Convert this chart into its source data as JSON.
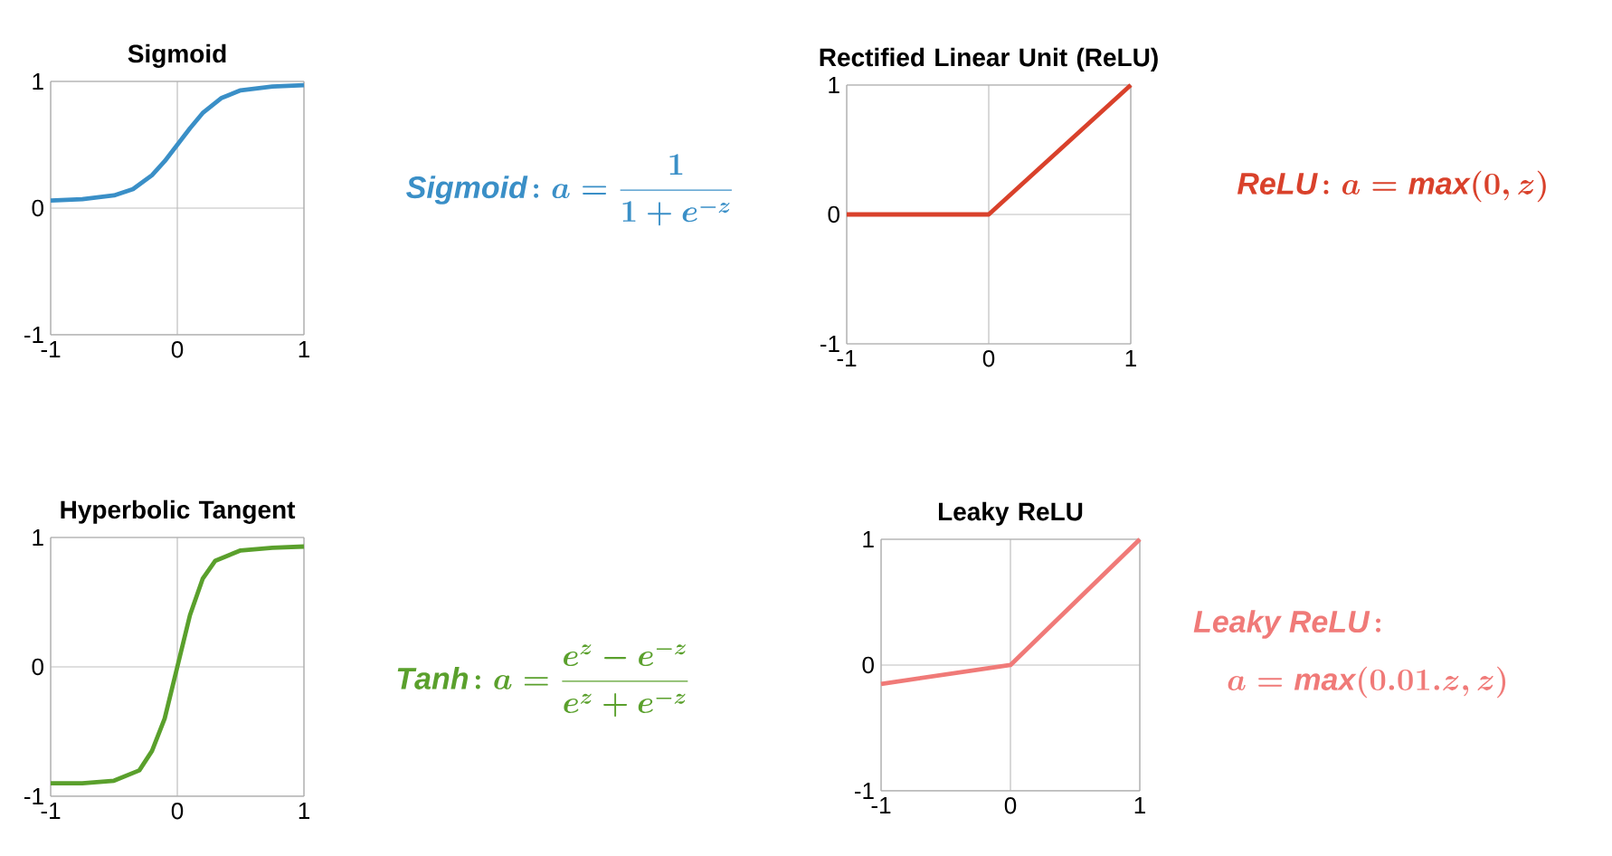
{
  "chart_data": [
    {
      "type": "line",
      "title": "Sigmoid",
      "x": [
        -1,
        -0.75,
        -0.5,
        -0.35,
        -0.2,
        -0.1,
        0,
        0.1,
        0.2,
        0.35,
        0.5,
        0.75,
        1
      ],
      "series": [
        {
          "color": "#3a8fc7",
          "values": [
            0.06,
            0.07,
            0.1,
            0.15,
            0.26,
            0.37,
            0.5,
            0.63,
            0.75,
            0.87,
            0.93,
            0.96,
            0.97
          ]
        }
      ],
      "xlim": [
        -1,
        1
      ],
      "ylim": [
        -1,
        1
      ],
      "xticks": [
        -1,
        0,
        1
      ],
      "yticks": [
        -1,
        0,
        1
      ],
      "grid": true,
      "annotations": [
        "\\mathit{Sigmoid}\\!: a = \\frac{1}{1+e^{-z}}"
      ]
    },
    {
      "type": "line",
      "title": "Rectified Linear Unit (ReLU)",
      "x": [
        -1,
        0,
        1
      ],
      "series": [
        {
          "color": "#d9412b",
          "values": [
            0,
            0,
            1
          ]
        }
      ],
      "xlim": [
        -1,
        1
      ],
      "ylim": [
        -1,
        1
      ],
      "xticks": [
        -1,
        0,
        1
      ],
      "yticks": [
        -1,
        0,
        1
      ],
      "grid": true,
      "annotations": [
        "\\mathit{ReLU}\\!: a = \\mathit{max}(0,z)"
      ]
    },
    {
      "type": "line",
      "title": "Hyperbolic Tangent",
      "x": [
        -1,
        -0.75,
        -0.5,
        -0.3,
        -0.2,
        -0.1,
        0,
        0.1,
        0.2,
        0.3,
        0.5,
        0.75,
        1
      ],
      "series": [
        {
          "color": "#5aa02c",
          "values": [
            -0.9,
            -0.9,
            -0.88,
            -0.8,
            -0.65,
            -0.4,
            0,
            0.4,
            0.68,
            0.82,
            0.9,
            0.92,
            0.93
          ]
        }
      ],
      "xlim": [
        -1,
        1
      ],
      "ylim": [
        -1,
        1
      ],
      "xticks": [
        -1,
        0,
        1
      ],
      "yticks": [
        -1,
        0,
        1
      ],
      "grid": true,
      "annotations": [
        "\\mathit{Tanh}\\!: a = \\frac{e^{z}-e^{-z}}{e^{z}+e^{-z}}"
      ]
    },
    {
      "type": "line",
      "title": "Leaky ReLU",
      "x": [
        -1,
        0,
        1
      ],
      "series": [
        {
          "color": "#f07a78",
          "values": [
            -0.15,
            0,
            1
          ]
        }
      ],
      "xlim": [
        -1,
        1
      ],
      "ylim": [
        -1,
        1
      ],
      "xticks": [
        -1,
        0,
        1
      ],
      "yticks": [
        -1,
        0,
        1
      ],
      "grid": true,
      "annotations": [
        "\\mathit{Leaky\\ ReLU}\\!:",
        "a = \\mathit{max}(0.01.z,z)"
      ]
    }
  ]
}
